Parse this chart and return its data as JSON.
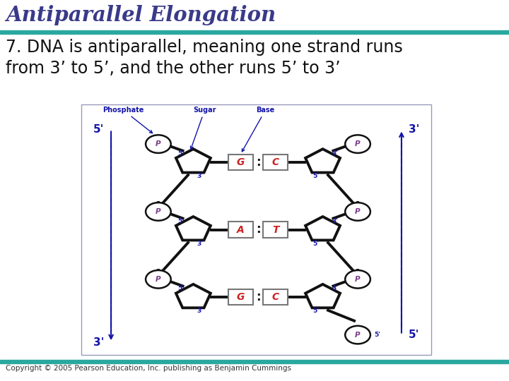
{
  "title": "Antiparallel Elongation",
  "body_text_1": "7. DNA is antiparallel, meaning one strand runs",
  "body_text_2": "from 3’ to 5’, and the other runs 5’ to 3’",
  "copyright": "Copyright © 2005 Pearson Education, Inc. publishing as Benjamin Cummings",
  "bg_color": "#ffffff",
  "title_color": "#3a3a8a",
  "title_bar_color": "#2aa8a0",
  "body_color": "#111111",
  "blue": "#1414aa",
  "red": "#cc2222",
  "black": "#111111",
  "purple": "#7a3a8a",
  "base_pairs": [
    [
      "G",
      "C"
    ],
    [
      "A",
      "T"
    ],
    [
      "G",
      "C"
    ]
  ],
  "left_arrow_labels": [
    "5'",
    "3'"
  ],
  "right_arrow_labels": [
    "3'",
    "5'"
  ]
}
